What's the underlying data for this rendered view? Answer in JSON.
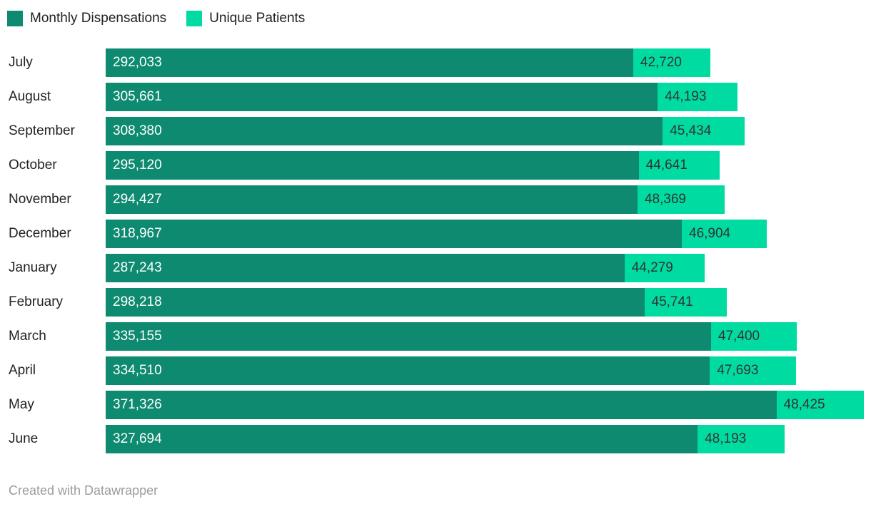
{
  "legend": {
    "items": [
      {
        "label": "Monthly Dispensations",
        "color": "#0d8a70",
        "text_color": "#ffffff"
      },
      {
        "label": "Unique Patients",
        "color": "#00dba1",
        "text_color": "#333333"
      }
    ]
  },
  "footer": {
    "text": "Created with Datawrapper"
  },
  "chart_data": {
    "type": "bar",
    "subtype": "horizontal-stacked",
    "title": "",
    "xlabel": "",
    "ylabel": "",
    "grid": false,
    "legend_position": "top-left",
    "categories": [
      "July",
      "August",
      "September",
      "October",
      "November",
      "December",
      "January",
      "February",
      "March",
      "April",
      "May",
      "June"
    ],
    "series": [
      {
        "name": "Monthly Dispensations",
        "color": "#0d8a70",
        "label_color": "#ffffff",
        "values": [
          292033,
          305661,
          308380,
          295120,
          294427,
          318967,
          287243,
          298218,
          335155,
          334510,
          371326,
          327694
        ],
        "labels": [
          "292,033",
          "305,661",
          "308,380",
          "295,120",
          "294,427",
          "318,967",
          "287,243",
          "298,218",
          "335,155",
          "334,510",
          "371,326",
          "327,694"
        ]
      },
      {
        "name": "Unique Patients",
        "color": "#00dba1",
        "label_color": "#333333",
        "values": [
          42720,
          44193,
          45434,
          44641,
          48369,
          46904,
          44279,
          45741,
          47400,
          47693,
          48425,
          48193
        ],
        "labels": [
          "42,720",
          "44,193",
          "45,434",
          "44,641",
          "48,369",
          "46,904",
          "44,279",
          "45,741",
          "47,400",
          "47,693",
          "48,425",
          "48,193"
        ]
      }
    ]
  }
}
